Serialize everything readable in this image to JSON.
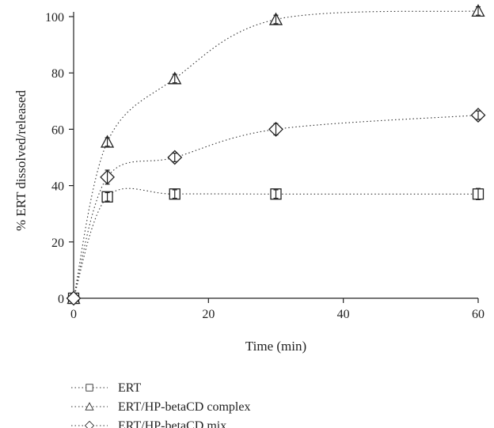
{
  "chart_data": {
    "type": "line",
    "title": "",
    "xlabel": "Time (min)",
    "ylabel": "% ERT dissolved/released",
    "xlim": [
      0,
      60
    ],
    "ylim": [
      0,
      100
    ],
    "xticks": [
      0,
      20,
      40,
      60
    ],
    "yticks": [
      0,
      20,
      40,
      60,
      80,
      100
    ],
    "grid": false,
    "legend_position": "bottom-left",
    "series": [
      {
        "name": "ERT",
        "marker": "square",
        "x": [
          0,
          5,
          15,
          30,
          60
        ],
        "y": [
          0,
          36,
          37,
          37,
          37
        ],
        "err": [
          0,
          1.5,
          1.5,
          1.5,
          2
        ]
      },
      {
        "name": "ERT/HP-betaCD complex",
        "marker": "triangle",
        "x": [
          0,
          5,
          15,
          30,
          60
        ],
        "y": [
          0,
          55.5,
          78,
          99,
          102
        ],
        "err": [
          0,
          1.5,
          1.5,
          1.5,
          1.5
        ]
      },
      {
        "name": "ERT/HP-betaCD mix",
        "marker": "diamond",
        "x": [
          0,
          5,
          15,
          30,
          60
        ],
        "y": [
          0,
          43,
          50,
          60,
          65
        ],
        "err": [
          0,
          2.5,
          1.5,
          2,
          1.5
        ]
      }
    ]
  }
}
